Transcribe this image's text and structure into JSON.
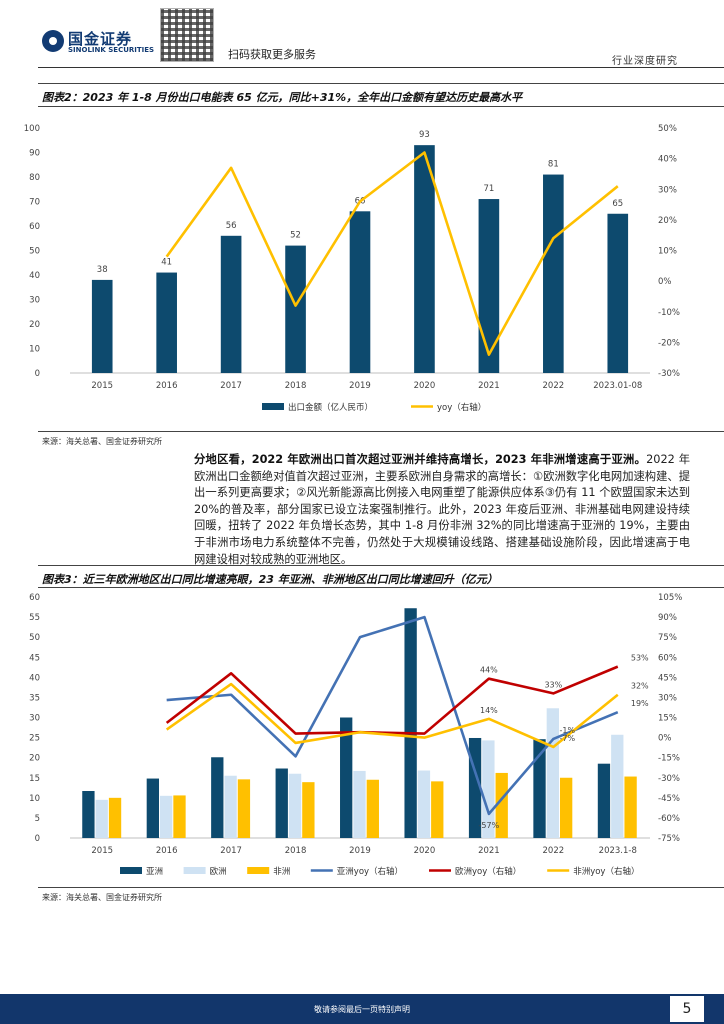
{
  "header": {
    "brand_cn": "国金证券",
    "brand_en": "SINOLINK SECURITIES",
    "qr_caption": "扫码获取更多服务",
    "report_type": "行业深度研究"
  },
  "figure2": {
    "title": "图表2：2023 年 1-8 月份出口电能表 65 亿元，同比+31%，全年出口金额有望达历史最高水平",
    "source": "来源：海关总署、国金证券研究所"
  },
  "figure3": {
    "title": "图表3：近三年欧洲地区出口同比增速亮眼，23 年亚洲、非洲地区出口同比增速回升（亿元）",
    "source": "来源：海关总署、国金证券研究所"
  },
  "paragraph": {
    "lead": "分地区看，2022 年欧洲出口首次超过亚洲并维持高增长，2023 年非洲增速高于亚洲。",
    "body": "2022 年欧洲出口金额绝对值首次超过亚洲，主要系欧洲自身需求的高增长：①欧洲数字化电网加速构建、提出一系列更高要求；②风光新能源高比例接入电网重塑了能源供应体系③仍有 11 个欧盟国家未达到 20%的普及率，部分国家已设立法案强制推行。此外，2023 年疫后亚洲、非洲基础电网建设持续回暖，扭转了 2022 年负增长态势，其中 1-8 月份非洲 32%的同比增速高于亚洲的 19%，主要由于非洲市场电力系统整体不完善，仍然处于大规模铺设线路、搭建基础设施阶段，因此增速高于电网建设相对较成熟的亚洲地区。"
  },
  "footer": {
    "disclaimer": "敬请参阅最后一页特别声明",
    "page": "5"
  },
  "chart_data": [
    {
      "type": "bar",
      "categories": [
        "2015",
        "2016",
        "2017",
        "2018",
        "2019",
        "2020",
        "2021",
        "2022",
        "2023.01-08"
      ],
      "series": [
        {
          "name": "出口金额（亿人民币）",
          "type": "bar",
          "axis": "left",
          "values": [
            38,
            41,
            56,
            52,
            66,
            93,
            71,
            81,
            65
          ],
          "color": "#0d4a6e"
        },
        {
          "name": "yoy（右轴）",
          "type": "line",
          "axis": "right",
          "values": [
            null,
            8,
            37,
            -8,
            26,
            42,
            -24,
            14,
            31
          ],
          "color": "#ffc000"
        }
      ],
      "data_labels": [
        "38",
        "41",
        "56",
        "52",
        "66",
        "93",
        "71",
        "81",
        "65"
      ],
      "left_axis": {
        "min": 0,
        "max": 100,
        "ticks": [
          "0",
          "10",
          "20",
          "30",
          "40",
          "50",
          "60",
          "70",
          "80",
          "90",
          "100"
        ]
      },
      "right_axis": {
        "min": -30,
        "max": 50,
        "ticks": [
          "-30%",
          "-20%",
          "-10%",
          "0%",
          "10%",
          "20%",
          "30%",
          "40%",
          "50%"
        ]
      },
      "legend_position": "bottom"
    },
    {
      "type": "bar",
      "categories": [
        "2015",
        "2016",
        "2017",
        "2018",
        "2019",
        "2020",
        "2021",
        "2022",
        "2023.1-8"
      ],
      "series": [
        {
          "name": "亚洲",
          "type": "bar",
          "axis": "left",
          "values": [
            11.7,
            14.8,
            20.1,
            17.3,
            30,
            57.2,
            24.9,
            24.6,
            18.5
          ],
          "color": "#0d4a6e"
        },
        {
          "name": "欧洲",
          "type": "bar",
          "axis": "left",
          "values": [
            9.5,
            10.5,
            15.5,
            16,
            16.7,
            16.8,
            24.3,
            32.3,
            25.7
          ],
          "color": "#cfe2f3"
        },
        {
          "name": "非洲",
          "type": "bar",
          "axis": "left",
          "values": [
            10,
            10.6,
            14.6,
            13.9,
            14.5,
            14.1,
            16.2,
            15,
            15.3
          ],
          "color": "#ffc000"
        },
        {
          "name": "亚洲yoy（右轴）",
          "type": "line",
          "axis": "right",
          "values": [
            null,
            28,
            32,
            -14,
            75,
            90,
            -57,
            -1,
            19
          ],
          "color": "#4472b4"
        },
        {
          "name": "欧洲yoy（右轴）",
          "type": "line",
          "axis": "right",
          "values": [
            null,
            11,
            48,
            3,
            4,
            3,
            44,
            33,
            53
          ],
          "color": "#c00000"
        },
        {
          "name": "非洲yoy（右轴）",
          "type": "line",
          "axis": "right",
          "values": [
            null,
            6,
            40,
            -4,
            4,
            0,
            14,
            -7,
            32
          ],
          "color": "#ffc000"
        }
      ],
      "line_labels": [
        {
          "series": "欧洲yoy（右轴）",
          "index": 6,
          "text": "44%"
        },
        {
          "series": "欧洲yoy（右轴）",
          "index": 7,
          "text": "33%"
        },
        {
          "series": "欧洲yoy（右轴）",
          "index": 8,
          "text": "53%"
        },
        {
          "series": "非洲yoy（右轴）",
          "index": 6,
          "text": "14%"
        },
        {
          "series": "非洲yoy（右轴）",
          "index": 7,
          "text": "-7%"
        },
        {
          "series": "非洲yoy（右轴）",
          "index": 8,
          "text": "32%"
        },
        {
          "series": "亚洲yoy（右轴）",
          "index": 6,
          "text": "-57%"
        },
        {
          "series": "亚洲yoy（右轴）",
          "index": 7,
          "text": "-1%"
        },
        {
          "series": "亚洲yoy（右轴）",
          "index": 8,
          "text": "19%"
        }
      ],
      "left_axis": {
        "min": 0,
        "max": 60,
        "ticks": [
          "0",
          "5",
          "10",
          "15",
          "20",
          "25",
          "30",
          "35",
          "40",
          "45",
          "50",
          "55",
          "60"
        ]
      },
      "right_axis": {
        "min": -75,
        "max": 105,
        "ticks": [
          "-75%",
          "-60%",
          "-45%",
          "-30%",
          "-15%",
          "0%",
          "15%",
          "30%",
          "45%",
          "60%",
          "75%",
          "90%",
          "105%"
        ]
      },
      "legend_position": "bottom"
    }
  ]
}
